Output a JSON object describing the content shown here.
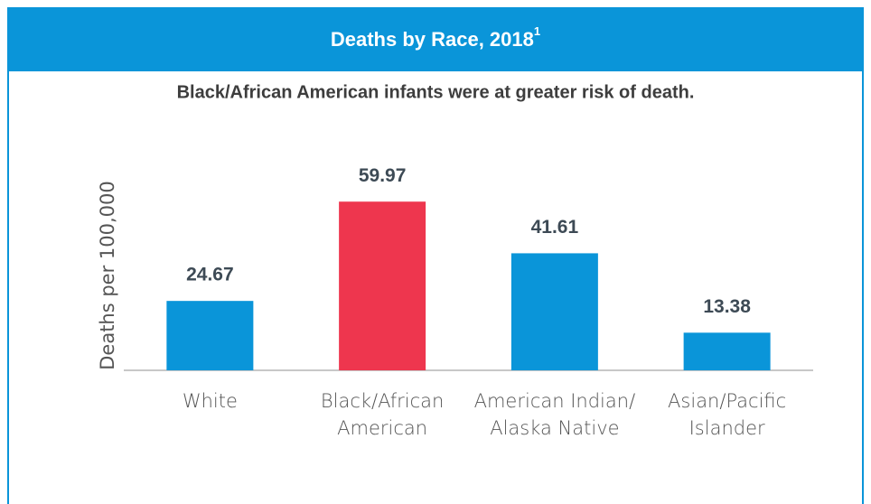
{
  "chart_data": {
    "type": "bar",
    "title": "Deaths by Race, 2018",
    "title_footnote": "1",
    "subtitle": "Black/African American infants were at greater risk of death.",
    "ylabel": "Deaths per 100,000",
    "categories": [
      "White",
      "Black/African American",
      "American Indian/ Alaska Native",
      "Asian/Pacific Islander"
    ],
    "values": [
      24.67,
      59.97,
      41.61,
      13.38
    ],
    "colors": [
      "#0a95d9",
      "#ee364e",
      "#0a95d9",
      "#0a95d9"
    ],
    "ylim": [
      0,
      70
    ]
  }
}
